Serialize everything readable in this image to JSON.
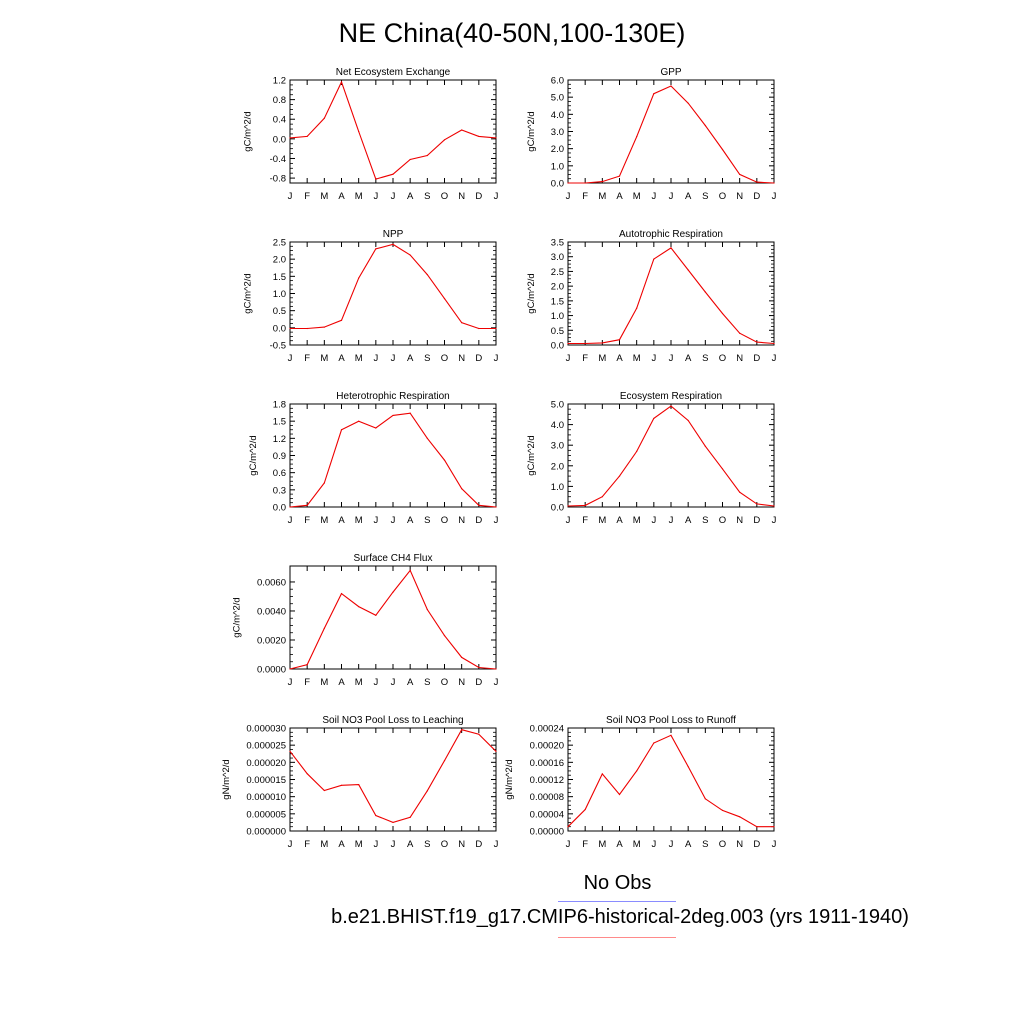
{
  "title": "NE China(40-50N,100-130E)",
  "legend": {
    "obs_label": "No Obs",
    "obs_color": "#8a8cff",
    "model_label": "b.e21.BHIST.f19_g17.CMIP6-historical-2deg.003 (yrs 1911-1940)",
    "model_color": "#ff8a8a"
  },
  "line_color": "#ee0000",
  "chart_data": [
    {
      "type": "line",
      "title": "Net Ecosystem Exchange",
      "ylabel": "gC/m^2/d",
      "x": [
        "J",
        "F",
        "M",
        "A",
        "M",
        "J",
        "J",
        "A",
        "S",
        "O",
        "N",
        "D",
        "J"
      ],
      "values": [
        0.02,
        0.05,
        0.42,
        1.16,
        0.15,
        -0.82,
        -0.72,
        -0.42,
        -0.34,
        -0.02,
        0.18,
        0.05,
        0.02
      ],
      "ylim": [
        -0.9,
        1.2
      ],
      "yticks": [
        "1.2",
        "0.8",
        "0.4",
        "0.0",
        "-0.4",
        "-0.8"
      ],
      "ytick_values": [
        1.2,
        0.8,
        0.4,
        0.0,
        -0.4,
        -0.8
      ]
    },
    {
      "type": "line",
      "title": "GPP",
      "ylabel": "gC/m^2/d",
      "x": [
        "J",
        "F",
        "M",
        "A",
        "M",
        "J",
        "J",
        "A",
        "S",
        "O",
        "N",
        "D",
        "J"
      ],
      "values": [
        0.0,
        0.0,
        0.08,
        0.4,
        2.7,
        5.2,
        5.65,
        4.65,
        3.35,
        1.95,
        0.5,
        0.05,
        0.0
      ],
      "ylim": [
        0.0,
        6.0
      ],
      "yticks": [
        "6.0",
        "5.0",
        "4.0",
        "3.0",
        "2.0",
        "1.0",
        "0.0"
      ],
      "ytick_values": [
        6.0,
        5.0,
        4.0,
        3.0,
        2.0,
        1.0,
        0.0
      ]
    },
    {
      "type": "line",
      "title": "NPP",
      "ylabel": "gC/m^2/d",
      "x": [
        "J",
        "F",
        "M",
        "A",
        "M",
        "J",
        "J",
        "A",
        "S",
        "O",
        "N",
        "D",
        "J"
      ],
      "values": [
        -0.02,
        -0.02,
        0.02,
        0.22,
        1.45,
        2.3,
        2.43,
        2.12,
        1.55,
        0.85,
        0.15,
        -0.02,
        -0.02
      ],
      "ylim": [
        -0.5,
        2.5
      ],
      "yticks": [
        "2.5",
        "2.0",
        "1.5",
        "1.0",
        "0.5",
        "0.0",
        "-0.5"
      ],
      "ytick_values": [
        2.5,
        2.0,
        1.5,
        1.0,
        0.5,
        0.0,
        -0.5
      ]
    },
    {
      "type": "line",
      "title": "Autotrophic Respiration",
      "ylabel": "gC/m^2/d",
      "x": [
        "J",
        "F",
        "M",
        "A",
        "M",
        "J",
        "J",
        "A",
        "S",
        "O",
        "N",
        "D",
        "J"
      ],
      "values": [
        0.05,
        0.05,
        0.07,
        0.18,
        1.25,
        2.92,
        3.3,
        2.55,
        1.8,
        1.07,
        0.4,
        0.1,
        0.05
      ],
      "ylim": [
        0.0,
        3.5
      ],
      "yticks": [
        "3.5",
        "3.0",
        "2.5",
        "2.0",
        "1.5",
        "1.0",
        "0.5",
        "0.0"
      ],
      "ytick_values": [
        3.5,
        3.0,
        2.5,
        2.0,
        1.5,
        1.0,
        0.5,
        0.0
      ]
    },
    {
      "type": "line",
      "title": "Heterotrophic Respiration",
      "ylabel": "gC/m^2/d",
      "x": [
        "J",
        "F",
        "M",
        "A",
        "M",
        "J",
        "J",
        "A",
        "S",
        "O",
        "N",
        "D",
        "J"
      ],
      "values": [
        0.0,
        0.03,
        0.42,
        1.35,
        1.5,
        1.38,
        1.6,
        1.64,
        1.2,
        0.82,
        0.32,
        0.03,
        0.0
      ],
      "ylim": [
        0.0,
        1.8
      ],
      "yticks": [
        "1.8",
        "1.5",
        "1.2",
        "0.9",
        "0.6",
        "0.3",
        "0.0"
      ],
      "ytick_values": [
        1.8,
        1.5,
        1.2,
        0.9,
        0.6,
        0.3,
        0.0
      ]
    },
    {
      "type": "line",
      "title": "Ecosystem Respiration",
      "ylabel": "gC/m^2/d",
      "x": [
        "J",
        "F",
        "M",
        "A",
        "M",
        "J",
        "J",
        "A",
        "S",
        "O",
        "N",
        "D",
        "J"
      ],
      "values": [
        0.05,
        0.08,
        0.5,
        1.5,
        2.7,
        4.3,
        4.9,
        4.2,
        2.95,
        1.85,
        0.72,
        0.15,
        0.05
      ],
      "ylim": [
        0.0,
        5.0
      ],
      "yticks": [
        "5.0",
        "4.0",
        "3.0",
        "2.0",
        "1.0",
        "0.0"
      ],
      "ytick_values": [
        5.0,
        4.0,
        3.0,
        2.0,
        1.0,
        0.0
      ]
    },
    {
      "type": "line",
      "title": "Surface CH4 Flux",
      "ylabel": "gC/m^2/d",
      "x": [
        "J",
        "F",
        "M",
        "A",
        "M",
        "J",
        "J",
        "A",
        "S",
        "O",
        "N",
        "D",
        "J"
      ],
      "values": [
        0.0,
        0.0003,
        0.0028,
        0.0052,
        0.0043,
        0.0037,
        0.0053,
        0.0068,
        0.0041,
        0.0023,
        0.0008,
        0.0001,
        0.0
      ],
      "ylim": [
        0.0,
        0.0071
      ],
      "yticks": [
        "0.0060",
        "0.0040",
        "0.0020",
        "0.0000"
      ],
      "ytick_values": [
        0.006,
        0.004,
        0.002,
        0.0
      ]
    },
    {
      "type": "line",
      "title": "Soil NO3 Pool Loss to Leaching",
      "ylabel": "gN/m^2/d",
      "x": [
        "J",
        "F",
        "M",
        "A",
        "M",
        "J",
        "J",
        "A",
        "S",
        "O",
        "N",
        "D",
        "J"
      ],
      "values": [
        2.32e-05,
        1.67e-05,
        1.18e-05,
        1.33e-05,
        1.35e-05,
        4.5e-06,
        2.5e-06,
        4e-06,
        1.17e-05,
        2.05e-05,
        2.95e-05,
        2.82e-05,
        2.32e-05
      ],
      "ylim": [
        0.0,
        3e-05
      ],
      "yticks": [
        "0.000030",
        "0.000025",
        "0.000020",
        "0.000015",
        "0.000010",
        "0.000005",
        "0.000000"
      ],
      "ytick_values": [
        3e-05,
        2.5e-05,
        2e-05,
        1.5e-05,
        1e-05,
        5e-06,
        0.0
      ]
    },
    {
      "type": "line",
      "title": "Soil NO3 Pool Loss to Runoff",
      "ylabel": "gN/m^2/d",
      "x": [
        "J",
        "F",
        "M",
        "A",
        "M",
        "J",
        "J",
        "A",
        "S",
        "O",
        "N",
        "D",
        "J"
      ],
      "values": [
        1e-05,
        5e-05,
        0.000133,
        8.5e-05,
        0.00014,
        0.000205,
        0.000223,
        0.00015,
        7.5e-05,
        4.8e-05,
        3.3e-05,
        1e-05,
        1e-05
      ],
      "ylim": [
        0.0,
        0.00024
      ],
      "yticks": [
        "0.00024",
        "0.00020",
        "0.00016",
        "0.00012",
        "0.00008",
        "0.00004",
        "0.00000"
      ],
      "ytick_values": [
        0.00024,
        0.0002,
        0.00016,
        0.00012,
        8e-05,
        4e-05,
        0.0
      ]
    }
  ]
}
